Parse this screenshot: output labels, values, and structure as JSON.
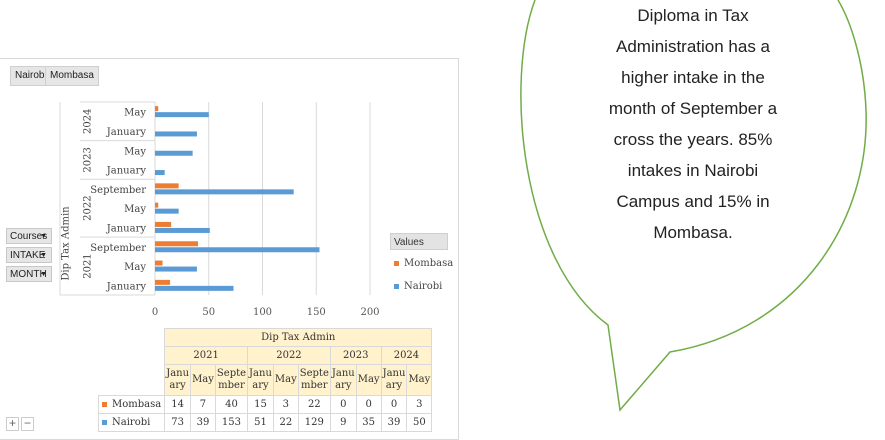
{
  "chart_data": {
    "type": "bar",
    "orientation": "horizontal",
    "course": "Dip Tax Admin",
    "categories": [
      {
        "year": "2021",
        "month": "January"
      },
      {
        "year": "2021",
        "month": "May"
      },
      {
        "year": "2021",
        "month": "September"
      },
      {
        "year": "2022",
        "month": "January"
      },
      {
        "year": "2022",
        "month": "May"
      },
      {
        "year": "2022",
        "month": "September"
      },
      {
        "year": "2023",
        "month": "January"
      },
      {
        "year": "2023",
        "month": "May"
      },
      {
        "year": "2024",
        "month": "January"
      },
      {
        "year": "2024",
        "month": "May"
      }
    ],
    "years": [
      "2021",
      "2022",
      "2023",
      "2024"
    ],
    "series": [
      {
        "name": "Mombasa",
        "color": "#ed7d31",
        "values": [
          14,
          7,
          40,
          15,
          3,
          22,
          0,
          0,
          0,
          3
        ]
      },
      {
        "name": "Nairobi",
        "color": "#5b9bd5",
        "values": [
          73,
          39,
          153,
          51,
          22,
          129,
          9,
          35,
          39,
          50
        ]
      }
    ],
    "xlim": [
      0,
      200
    ],
    "xticks": [
      0,
      50,
      100,
      150,
      200
    ],
    "grid": true,
    "legend_title": "Values",
    "legend_position": "right"
  },
  "filter_tabs": [
    "Nairobi",
    "Mombasa"
  ],
  "row_fields": [
    "Courses",
    "INTAKE",
    "MONTH"
  ],
  "table": {
    "header_course": "Dip Tax Admin",
    "year_headers": [
      "2021",
      "2022",
      "2023",
      "2024"
    ],
    "month_headers": [
      "Janu ary",
      "May",
      "Septe mber",
      "Janu ary",
      "May",
      "Septe mber",
      "Janu ary",
      "May",
      "Janu ary",
      "May"
    ],
    "rows": [
      {
        "label": "Mombasa",
        "values": [
          "14",
          "7",
          "40",
          "15",
          "3",
          "22",
          "0",
          "0",
          "0",
          "3"
        ]
      },
      {
        "label": "Nairobi",
        "values": [
          "73",
          "39",
          "153",
          "51",
          "22",
          "129",
          "9",
          "35",
          "39",
          "50"
        ]
      }
    ]
  },
  "controls": {
    "plus": "+",
    "minus": "−"
  },
  "callout": {
    "lines": [
      "Diploma in Tax",
      "Administration has a",
      "higher intake in the",
      "month of September a",
      "cross the years. 85%",
      "intakes in Nairobi",
      "Campus and 15% in",
      "Mombasa."
    ]
  }
}
